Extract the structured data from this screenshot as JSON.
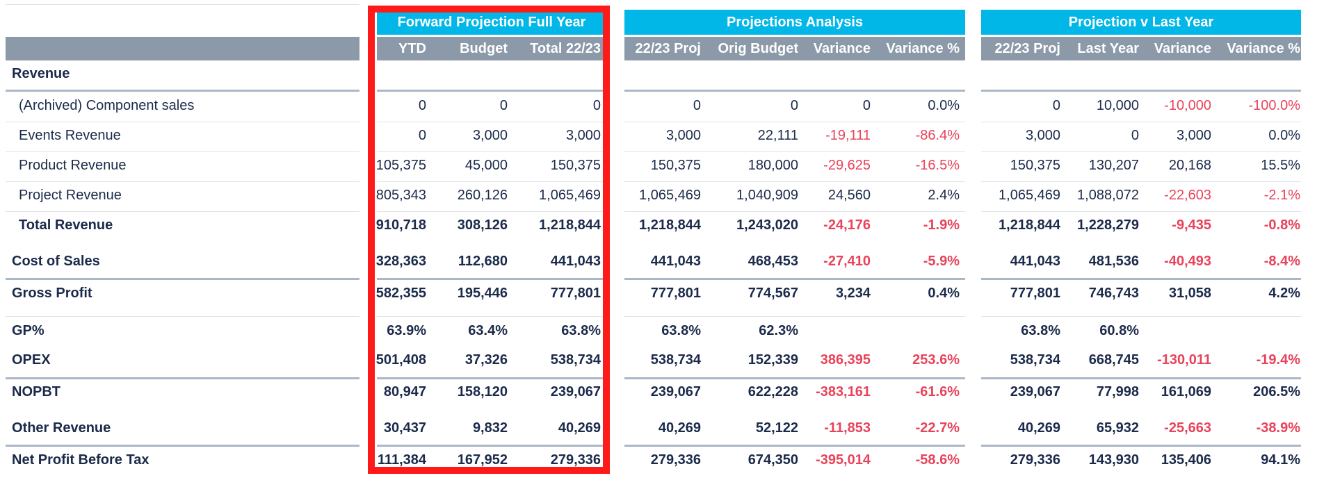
{
  "groups": {
    "forward": "Forward Projection Full Year",
    "analysis": "Projections Analysis",
    "vs_last": "Projection v Last Year"
  },
  "columns": {
    "ytd": "YTD",
    "budget": "Budget",
    "total": "Total 22/23",
    "a_proj": "22/23 Proj",
    "a_orig": "Orig Budget",
    "a_var": "Variance",
    "a_varp": "Variance %",
    "l_proj": "22/23 Proj",
    "l_last": "Last Year",
    "l_var": "Variance",
    "l_varp": "Variance %"
  },
  "rows": [
    {
      "label": "Revenue",
      "v": [
        "",
        "",
        "",
        "",
        "",
        "",
        "",
        "",
        "",
        "",
        ""
      ]
    },
    {
      "label": "(Archived) Component sales",
      "v": [
        "0",
        "0",
        "0",
        "0",
        "0",
        "0",
        "0.0%",
        "0",
        "10,000",
        "-10,000",
        "-100.0%"
      ]
    },
    {
      "label": "Events Revenue",
      "v": [
        "0",
        "3,000",
        "3,000",
        "3,000",
        "22,111",
        "-19,111",
        "-86.4%",
        "3,000",
        "0",
        "3,000",
        "0.0%"
      ]
    },
    {
      "label": "Product Revenue",
      "v": [
        "105,375",
        "45,000",
        "150,375",
        "150,375",
        "180,000",
        "-29,625",
        "-16.5%",
        "150,375",
        "130,207",
        "20,168",
        "15.5%"
      ]
    },
    {
      "label": "Project Revenue",
      "v": [
        "805,343",
        "260,126",
        "1,065,469",
        "1,065,469",
        "1,040,909",
        "24,560",
        "2.4%",
        "1,065,469",
        "1,088,072",
        "-22,603",
        "-2.1%"
      ]
    },
    {
      "label": "Total Revenue",
      "v": [
        "910,718",
        "308,126",
        "1,218,844",
        "1,218,844",
        "1,243,020",
        "-24,176",
        "-1.9%",
        "1,218,844",
        "1,228,279",
        "-9,435",
        "-0.8%"
      ]
    },
    {
      "label": "Cost of Sales",
      "v": [
        "328,363",
        "112,680",
        "441,043",
        "441,043",
        "468,453",
        "-27,410",
        "-5.9%",
        "441,043",
        "481,536",
        "-40,493",
        "-8.4%"
      ]
    },
    {
      "label": "Gross Profit",
      "v": [
        "582,355",
        "195,446",
        "777,801",
        "777,801",
        "774,567",
        "3,234",
        "0.4%",
        "777,801",
        "746,743",
        "31,058",
        "4.2%"
      ]
    },
    {
      "label": "GP%",
      "v": [
        "63.9%",
        "63.4%",
        "63.8%",
        "63.8%",
        "62.3%",
        "",
        "",
        "63.8%",
        "60.8%",
        "",
        ""
      ]
    },
    {
      "label": "OPEX",
      "v": [
        "501,408",
        "37,326",
        "538,734",
        "538,734",
        "152,339",
        "386,395",
        "253.6%",
        "538,734",
        "668,745",
        "-130,011",
        "-19.4%"
      ]
    },
    {
      "label": "NOPBT",
      "v": [
        "80,947",
        "158,120",
        "239,067",
        "239,067",
        "622,228",
        "-383,161",
        "-61.6%",
        "239,067",
        "77,998",
        "161,069",
        "206.5%"
      ]
    },
    {
      "label": "Other Revenue",
      "v": [
        "30,437",
        "9,832",
        "40,269",
        "40,269",
        "52,122",
        "-11,853",
        "-22.7%",
        "40,269",
        "65,932",
        "-25,663",
        "-38.9%"
      ]
    },
    {
      "label": "Net Profit Before Tax",
      "v": [
        "111,384",
        "167,952",
        "279,336",
        "279,336",
        "674,350",
        "-395,014",
        "-58.6%",
        "279,336",
        "143,930",
        "135,406",
        "94.1%"
      ]
    }
  ],
  "colors": {
    "band": "#00b7e8",
    "header": "#8b99a8",
    "negative": "#e8435a",
    "highlight": "#ff1a1a"
  }
}
